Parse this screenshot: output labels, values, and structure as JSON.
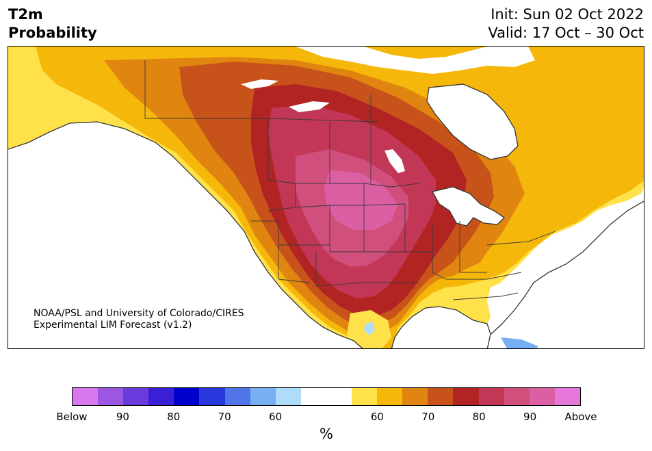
{
  "title": {
    "left_line1": "T2m",
    "left_line2": "Probability",
    "right_line1": "Init: Sun 02 Oct 2022",
    "right_line2": "Valid: 17 Oct – 30 Oct"
  },
  "credit": {
    "line1": "NOAA/PSL and University of Colorado/CIRES",
    "line2": "Experimental LIM Forecast (v1.2)"
  },
  "colorbar": {
    "colors": [
      "#d977ee",
      "#9b57e3",
      "#6a3bdc",
      "#3b1fd6",
      "#0000cc",
      "#2838dc",
      "#5075e8",
      "#76b0f2",
      "#afdcfb",
      "#ffffff",
      "#ffffff",
      "#ffe14a",
      "#f5b70a",
      "#e08510",
      "#c8531a",
      "#b22424",
      "#c23656",
      "#d04f7c",
      "#dc5fa4",
      "#e678dc"
    ],
    "ticks": [
      "Below",
      "90",
      "80",
      "70",
      "60",
      "60",
      "70",
      "80",
      "90",
      "Above"
    ],
    "unit": "%"
  }
}
